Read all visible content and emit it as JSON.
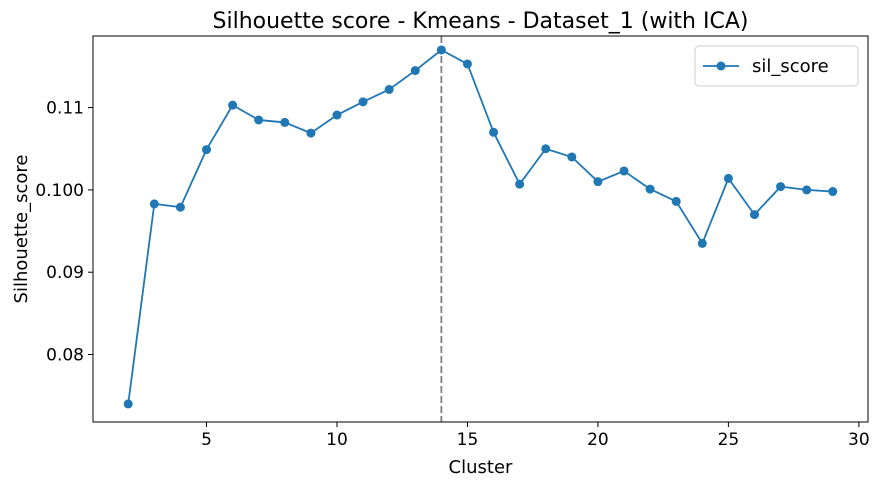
{
  "chart_data": {
    "type": "line",
    "title": "Silhouette score - Kmeans - Dataset_1 (with ICA)",
    "xlabel": "Cluster",
    "ylabel": "Silhouette_score",
    "xlim": [
      0.65,
      30.35
    ],
    "ylim": [
      0.0718,
      0.1187
    ],
    "xticks": [
      5,
      10,
      15,
      20,
      25,
      30
    ],
    "yticks": [
      0.08,
      0.09,
      0.1,
      0.11
    ],
    "ytick_labels": [
      "0.08",
      "0.09",
      "0.100",
      "0.11"
    ],
    "grid": false,
    "legend": "top-right",
    "vline": {
      "x": 14,
      "style": "dashed",
      "color": "#808080"
    },
    "series": [
      {
        "name": "sil_score",
        "color": "#1f77b4",
        "marker": "circle",
        "x": [
          2,
          3,
          4,
          5,
          6,
          7,
          8,
          9,
          10,
          11,
          12,
          13,
          14,
          15,
          16,
          17,
          18,
          19,
          20,
          21,
          22,
          23,
          24,
          25,
          26,
          27,
          28,
          29
        ],
        "y": [
          0.074,
          0.0983,
          0.0979,
          0.1049,
          0.1103,
          0.1085,
          0.1082,
          0.1069,
          0.1091,
          0.1107,
          0.1122,
          0.1145,
          0.117,
          0.1153,
          0.107,
          0.1007,
          0.105,
          0.104,
          0.101,
          0.1023,
          0.1001,
          0.0986,
          0.0935,
          0.1014,
          0.097,
          0.1004,
          0.1,
          0.0998
        ]
      }
    ]
  }
}
